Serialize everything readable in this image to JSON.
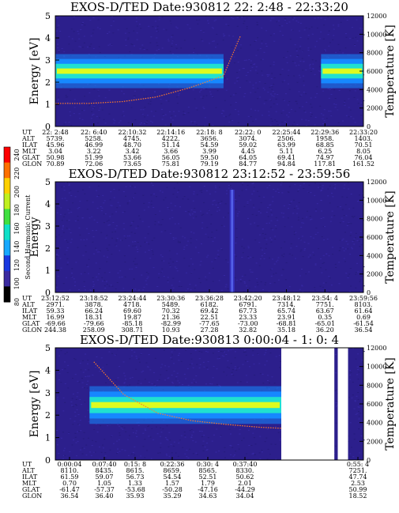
{
  "colors": {
    "background": "#2c1f8c",
    "band_core": "#ffff00",
    "band_mid": "#20e0d0",
    "band_edge": "#1688ff",
    "temperature_trace": "#ff7a2a"
  },
  "colorbar": {
    "label": "Second Harmonic Current",
    "ticks": [
      "80",
      "100",
      "120",
      "140",
      "160",
      "180",
      "200",
      "220",
      "240"
    ],
    "colors": [
      "#000000",
      "#3a2aa0",
      "#1838e0",
      "#16a8ff",
      "#10e0c8",
      "#40e040",
      "#c0f020",
      "#ffd000",
      "#ff7000",
      "#ff0000"
    ]
  },
  "chart_data": [
    {
      "type": "heatmap",
      "title": "EXOS-D/TED   Date:930812  22: 2:48 - 22:33:20",
      "ylabel": "Energy [eV]",
      "ylabel_right": "Temperature [K]",
      "ylim": [
        0,
        5
      ],
      "ylim_right": [
        0,
        12000
      ],
      "yticks": [
        "0",
        "1",
        "2",
        "3",
        "4",
        "5"
      ],
      "yticks_right": [
        "0",
        "2000",
        "4000",
        "6000",
        "8000",
        "10000",
        "12000"
      ],
      "time_span": [
        0,
        1832
      ],
      "band_segments": [
        {
          "t0": 0,
          "t1": 1000,
          "e_center": 2.5,
          "e_halfwidth": 0.55
        },
        {
          "t0": 1580,
          "t1": 1832,
          "e_center": 2.5,
          "e_halfwidth": 0.55
        }
      ],
      "temperature_trace": {
        "t": [
          0,
          200,
          400,
          600,
          800,
          1000,
          1100
        ],
        "T": [
          2500,
          2500,
          2700,
          3200,
          4200,
          5500,
          9800
        ]
      },
      "table": {
        "row_labels": [
          "UT",
          "ALT",
          "ILAT",
          "MLT",
          "GLAT",
          "GLON"
        ],
        "columns": [
          [
            "22: 2:48",
            "5739.",
            "45.96",
            "3.04",
            "50.98",
            "70.89"
          ],
          [
            "22: 6:40",
            "5258.",
            "46.99",
            "3.22",
            "51.99",
            "72.06"
          ],
          [
            "22:10:32",
            "4745.",
            "48.70",
            "3.42",
            "53.66",
            "73.65"
          ],
          [
            "22:14:16",
            "4222.",
            "51.14",
            "3.66",
            "56.05",
            "75.81"
          ],
          [
            "22:18: 8",
            "3656.",
            "54.59",
            "3.99",
            "59.50",
            "79.19"
          ],
          [
            "22:22: 0",
            "3074.",
            "59.02",
            "4.45",
            "64.05",
            "84.77"
          ],
          [
            "22:25:44",
            "2506.",
            "63.99",
            "5.11",
            "69.41",
            "94.84"
          ],
          [
            "22:29:36",
            "1958.",
            "68.85",
            "6.25",
            "74.97",
            "117.81"
          ],
          [
            "22:33:20",
            "1403.",
            "70.51",
            "8.05",
            "76.04",
            "161.52"
          ]
        ]
      }
    },
    {
      "type": "heatmap",
      "title": "EXOS-D/TED   Date:930812  23:12:52 - 23:59:56",
      "ylabel": "Energy",
      "ylabel_right": "Temperature [K]",
      "ylim": [
        0,
        5
      ],
      "ylim_right": [
        0,
        12000
      ],
      "yticks": [
        "0",
        "1",
        "2",
        "3",
        "4",
        "5"
      ],
      "yticks_right": [
        "0",
        "2000",
        "4000",
        "6000",
        "8000",
        "10000",
        "12000"
      ],
      "time_span": [
        0,
        2824
      ],
      "band_segments": [],
      "spike": {
        "t": 1620
      },
      "table": {
        "row_labels": [
          "UT",
          "ALT",
          "ILAT",
          "MLT",
          "GLAT",
          "GLON"
        ],
        "columns": [
          [
            "23:12:52",
            "2971.",
            "59.33",
            "16.99",
            "-69.66",
            "244.38"
          ],
          [
            "23:18:52",
            "3878.",
            "66.24",
            "18.31",
            "-79.66",
            "258.09"
          ],
          [
            "23:24:44",
            "4718.",
            "69.60",
            "19.87",
            "-85.18",
            "308.71"
          ],
          [
            "23:30:36",
            "5489.",
            "70.32",
            "21.36",
            "-82.99",
            "10.93"
          ],
          [
            "23:36:28",
            "6182.",
            "69.42",
            "22.51",
            "-77.65",
            "27.28"
          ],
          [
            "23:42:20",
            "6791.",
            "67.73",
            "23.33",
            "-73.00",
            "32.82"
          ],
          [
            "23:48:12",
            "7314.",
            "65.74",
            "23.91",
            "-68.81",
            "35.18"
          ],
          [
            "23:54: 4",
            "7751.",
            "63.67",
            "0.35",
            "-65.01",
            "36.20"
          ],
          [
            "23:59:56",
            "8103.",
            "61.64",
            "0.69",
            "-61.54",
            "36.54"
          ]
        ]
      }
    },
    {
      "type": "heatmap",
      "title": "EXOS-D/TED   Date:930813  0:00:04 - 1: 0: 4",
      "ylabel": "Energy [eV]",
      "ylabel_right": "Temperature [K]",
      "ylim": [
        0,
        5
      ],
      "ylim_right": [
        0,
        12000
      ],
      "yticks": [
        "0",
        "1",
        "2",
        "3",
        "4",
        "5"
      ],
      "yticks_right": [
        "0",
        "2000",
        "4000",
        "6000",
        "8000",
        "10000",
        "12000"
      ],
      "time_span": [
        0,
        3600
      ],
      "band_segments": [
        {
          "t0": 400,
          "t1": 2640,
          "e_center": 2.45,
          "e_halfwidth": 0.6
        }
      ],
      "data_gaps": [
        {
          "t0": 2640,
          "t1": 3260
        },
        {
          "t0": 3300,
          "t1": 3420
        }
      ],
      "temperature_trace": {
        "t": [
          450,
          800,
          1200,
          1600,
          2000,
          2400,
          2640
        ],
        "T": [
          10500,
          7000,
          5000,
          4200,
          3800,
          3500,
          3400
        ]
      },
      "table": {
        "row_labels": [
          "UT",
          "ALT",
          "ILAT",
          "MLT",
          "GLAT",
          "GLON"
        ],
        "columns": [
          [
            "0:00:04",
            "8110.",
            "61.59",
            "0.70",
            "-61.47",
            "36.54"
          ],
          [
            "0:07:40",
            "8435.",
            "59.07",
            "1.05",
            "-57.37",
            "36.40"
          ],
          [
            "0:15: 8",
            "8615.",
            "56.73",
            "1.33",
            "-53.68",
            "35.93"
          ],
          [
            "0:22:36",
            "8659.",
            "54.54",
            "1.57",
            "-50.28",
            "35.29"
          ],
          [
            "0:30: 4",
            "8565.",
            "52.51",
            "1.79",
            "-47.16",
            "34.63"
          ],
          [
            "0:37:40",
            "8330.",
            "50.62",
            "2.01",
            "-44.29",
            "34.04"
          ],
          [
            "0:55: 4",
            "7251.",
            "47.74",
            "2.53",
            "50.99",
            "18.52"
          ]
        ]
      }
    }
  ]
}
